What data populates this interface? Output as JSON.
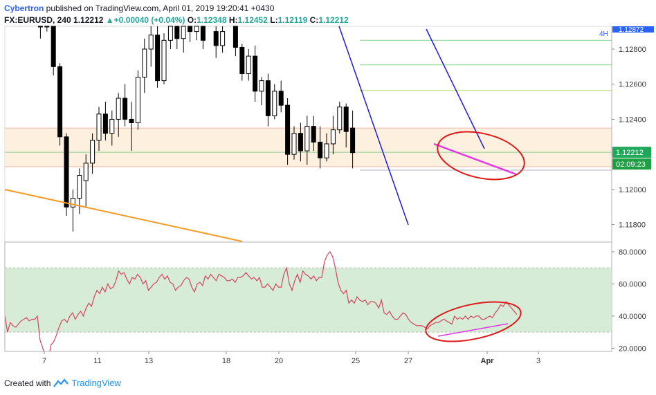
{
  "header": {
    "author": "Cybertron",
    "published_text": " published on TradingView.com, April 01, 2019 19:20:41 +0430",
    "symbol": "FX:EURUSD, 240",
    "last": "1.12212",
    "change": "+0.00040 (+0.04%)",
    "o_label": "O:",
    "open": "1.12348",
    "h_label": "H:",
    "high": "1.12452",
    "l_label": "L:",
    "low": "1.12119",
    "c_label": "C:",
    "close": "1.12212"
  },
  "footer": {
    "created_with": "Created with",
    "brand": "TradingView"
  },
  "colors": {
    "candle_up": "#ffffff",
    "candle_down": "#000000",
    "candle_border": "#000000",
    "rsi_line": "#d6445d",
    "rsi_band": "#c8e6c9",
    "orange_trend": "#f59a23",
    "blue_trend": "#1a1ae6",
    "magenta": "#e535e5",
    "ellipse": "#e01818",
    "zone_fill": "#fdebd3",
    "price_tag": "#1fa85a",
    "countdown_tag": "#1f9e44"
  },
  "chart_data": [
    {
      "type": "candlestick",
      "symbol": "FX:EURUSD",
      "timeframe": "240",
      "x_ticks": [
        "7",
        "11",
        "13",
        "18",
        "20",
        "25",
        "27",
        "Apr",
        "3"
      ],
      "y_ticks": [
        "1.12800",
        "1.12600",
        "1.12400",
        "1.12200",
        "1.12000",
        "1.11800"
      ],
      "ylim": [
        1.117,
        1.1293
      ],
      "price_labels": {
        "last": "1.12212",
        "countdown": "02:09:23",
        "top_partial": "1.12872",
        "timeframe_tag": "4H"
      },
      "candles": [
        [
          1,
          1.1295,
          1.1305,
          1.1286,
          1.1298
        ],
        [
          2,
          1.1297,
          1.1312,
          1.129,
          1.1295
        ],
        [
          3,
          1.1294,
          1.1298,
          1.1265,
          1.127
        ],
        [
          4,
          1.127,
          1.1272,
          1.1225,
          1.123
        ],
        [
          5,
          1.123,
          1.1232,
          1.1185,
          1.119
        ],
        [
          6,
          1.119,
          1.12,
          1.1176,
          1.1195
        ],
        [
          7,
          1.1195,
          1.1212,
          1.1186,
          1.1208
        ],
        [
          8,
          1.1205,
          1.122,
          1.119,
          1.1215
        ],
        [
          9,
          1.1215,
          1.1232,
          1.1209,
          1.1228
        ],
        [
          10,
          1.1228,
          1.1247,
          1.1222,
          1.1243
        ],
        [
          11,
          1.1243,
          1.125,
          1.1228,
          1.1232
        ],
        [
          12,
          1.1232,
          1.1245,
          1.1225,
          1.124
        ],
        [
          13,
          1.124,
          1.1255,
          1.123,
          1.1252
        ],
        [
          14,
          1.1252,
          1.126,
          1.1236,
          1.124
        ],
        [
          15,
          1.124,
          1.125,
          1.1222,
          1.1238
        ],
        [
          16,
          1.1238,
          1.1268,
          1.1234,
          1.1264
        ],
        [
          17,
          1.1264,
          1.1286,
          1.1255,
          1.128
        ],
        [
          18,
          1.128,
          1.1296,
          1.127,
          1.1288
        ],
        [
          19,
          1.1288,
          1.1298,
          1.1258,
          1.1262
        ],
        [
          20,
          1.1262,
          1.1289,
          1.126,
          1.1285
        ],
        [
          21,
          1.1285,
          1.1297,
          1.128,
          1.1293
        ],
        [
          22,
          1.1293,
          1.1296,
          1.128,
          1.1286
        ],
        [
          23,
          1.1286,
          1.13,
          1.1278,
          1.1293
        ],
        [
          24,
          1.1293,
          1.13,
          1.1284,
          1.129
        ],
        [
          25,
          1.129,
          1.13,
          1.1285,
          1.1296
        ],
        [
          26,
          1.1296,
          1.1302,
          1.128,
          1.1285
        ],
        [
          28,
          1.129,
          1.1296,
          1.1275,
          1.1282
        ],
        [
          29,
          1.1282,
          1.1293,
          1.1278,
          1.129
        ],
        [
          31,
          1.1296,
          1.1299,
          1.1276,
          1.1281
        ],
        [
          32,
          1.1281,
          1.1283,
          1.1262,
          1.1266
        ],
        [
          33,
          1.1266,
          1.128,
          1.1262,
          1.1276
        ],
        [
          34,
          1.1276,
          1.1282,
          1.125,
          1.1256
        ],
        [
          35,
          1.1256,
          1.1264,
          1.1248,
          1.1262
        ],
        [
          36,
          1.1262,
          1.1266,
          1.1236,
          1.1242
        ],
        [
          37,
          1.1242,
          1.126,
          1.124,
          1.1256
        ],
        [
          38,
          1.1256,
          1.1262,
          1.1244,
          1.1248
        ],
        [
          39,
          1.1248,
          1.1252,
          1.1214,
          1.122
        ],
        [
          40,
          1.122,
          1.1236,
          1.1217,
          1.1232
        ],
        [
          41,
          1.1232,
          1.1238,
          1.1216,
          1.1222
        ],
        [
          42,
          1.1222,
          1.1242,
          1.1214,
          1.1236
        ],
        [
          43,
          1.1236,
          1.1242,
          1.1222,
          1.1227
        ],
        [
          44,
          1.1227,
          1.1236,
          1.1212,
          1.1218
        ],
        [
          45,
          1.1218,
          1.1232,
          1.1216,
          1.1226
        ],
        [
          46,
          1.1226,
          1.1242,
          1.122,
          1.1234
        ],
        [
          47,
          1.1234,
          1.125,
          1.1232,
          1.1247
        ],
        [
          48,
          1.1247,
          1.1249,
          1.1224,
          1.1233
        ],
        [
          49,
          1.1235,
          1.1245,
          1.1212,
          1.1221
        ]
      ],
      "horizontal_levels": [
        {
          "price": 1.1285,
          "color": "#8fd18f",
          "from": "25"
        },
        {
          "price": 1.1271,
          "color": "#8fd18f",
          "from": "25"
        },
        {
          "price": 1.12565,
          "color": "#b8e26a",
          "from": "25"
        },
        {
          "price": 1.12212,
          "color": "#8fd18f",
          "from": "start"
        },
        {
          "price": 1.1211,
          "color": "#b0a8c0",
          "from": "25"
        }
      ],
      "zone": {
        "top": 1.1235,
        "bottom": 1.1213
      }
    },
    {
      "type": "line",
      "name": "",
      "y_ticks": [
        "80.0000",
        "60.0000",
        "40.0000",
        "20.0000"
      ],
      "ylim": [
        18,
        86
      ],
      "band": [
        30,
        70
      ],
      "x": [
        0,
        1,
        2,
        3,
        4,
        5,
        6,
        7,
        8,
        9,
        10,
        11,
        12,
        13,
        14,
        15,
        16,
        17,
        18,
        19,
        20,
        21,
        22,
        23,
        24,
        25,
        26,
        27,
        28,
        29,
        30,
        31,
        32,
        33,
        34,
        35,
        36,
        37,
        38,
        39,
        40,
        41,
        42,
        43,
        44,
        45,
        46,
        47,
        48,
        49,
        50,
        51,
        52,
        53,
        54,
        55,
        56,
        57,
        58,
        59,
        60,
        61,
        62,
        63,
        64,
        65,
        66,
        67,
        68,
        69,
        70,
        71,
        72,
        73,
        74,
        75,
        76,
        77,
        78,
        79,
        80,
        81,
        82,
        83,
        84,
        85,
        86,
        87,
        88,
        89,
        90,
        91,
        92,
        93,
        94,
        95,
        96,
        97,
        98,
        99,
        100,
        101,
        102,
        103,
        104,
        105,
        106,
        107,
        108,
        109,
        110,
        111,
        112,
        113,
        114,
        115,
        116,
        117,
        118,
        119,
        120,
        121,
        122,
        123,
        124,
        125,
        126,
        127,
        128,
        129,
        130,
        131,
        132,
        133,
        134,
        135,
        136,
        137,
        138,
        139,
        140,
        141,
        142,
        143,
        144,
        145,
        146,
        147,
        148,
        149,
        150,
        151,
        152,
        153,
        154,
        155,
        156,
        157,
        158,
        159,
        160,
        161,
        162,
        163,
        164,
        165,
        166,
        167,
        168,
        169,
        170,
        171,
        172,
        173,
        174,
        175,
        176,
        177,
        178,
        179,
        180,
        181,
        182,
        183,
        184,
        185,
        186,
        187,
        188,
        189
      ],
      "values": [
        40,
        30,
        36,
        34,
        33,
        35,
        37,
        38,
        39,
        37,
        38,
        38,
        40,
        25,
        20,
        14,
        12,
        22,
        24,
        28,
        33,
        37,
        38,
        36,
        40,
        42,
        38,
        41,
        43,
        40,
        45,
        48,
        46,
        52,
        56,
        54,
        58,
        55,
        60,
        57,
        58,
        62,
        68,
        66,
        67,
        63,
        60,
        64,
        63,
        66,
        64,
        60,
        62,
        56,
        58,
        60,
        61,
        64,
        66,
        63,
        65,
        61,
        60,
        56,
        58,
        59,
        62,
        64,
        63,
        58,
        55,
        60,
        61,
        59,
        65,
        63,
        66,
        64,
        62,
        66,
        65,
        64,
        62,
        62,
        63,
        61,
        64,
        64,
        65,
        67,
        65,
        63,
        64,
        62,
        64,
        58,
        58,
        60,
        58,
        56,
        60,
        58,
        58,
        66,
        70,
        60,
        56,
        62,
        66,
        61,
        68,
        66,
        65,
        63,
        65,
        62,
        64,
        64,
        74,
        78,
        80,
        77,
        70,
        61,
        56,
        54,
        56,
        48,
        50,
        48,
        52,
        50,
        49,
        50,
        47,
        49,
        49,
        48,
        45,
        50,
        42,
        41,
        43,
        40,
        38,
        38,
        40,
        42,
        41,
        38,
        36,
        35,
        34,
        34,
        34,
        33,
        32,
        34,
        35,
        36,
        36,
        37,
        38,
        37,
        36,
        35,
        40,
        38,
        39,
        38,
        40,
        38,
        40,
        39,
        40,
        40,
        38,
        38,
        39,
        40,
        39,
        42,
        44,
        47,
        46,
        49,
        47,
        45,
        43,
        41
      ]
    }
  ]
}
